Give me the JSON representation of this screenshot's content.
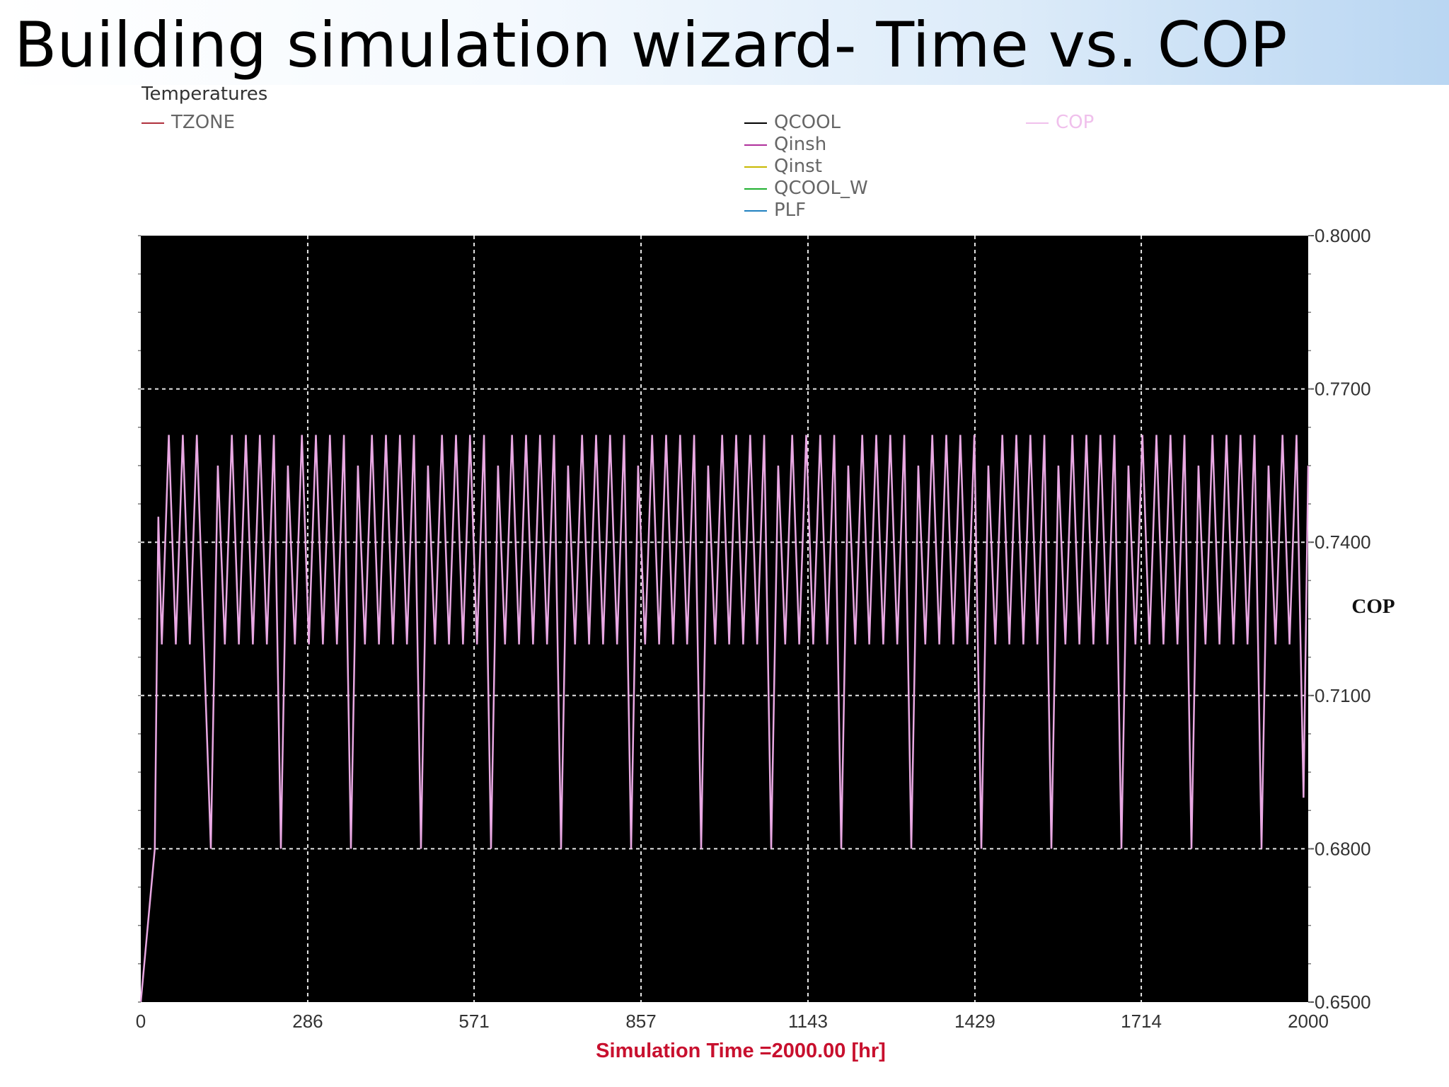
{
  "page": {
    "title": "Building simulation wizard- Time vs. COP"
  },
  "colors": {
    "plot_background": "#000000",
    "grid": "#e6e6e6",
    "cop_line": "#e9a8e3",
    "xlabel": "#c8102e",
    "title_banner": "#b9d6f2"
  },
  "legend": {
    "group_title": "Temperatures",
    "left": [
      {
        "label": "TZONE",
        "color": "#b0303c"
      }
    ],
    "middle": [
      {
        "label": "QCOOL",
        "color": "#000000"
      },
      {
        "label": "Qinsh",
        "color": "#b0309c"
      },
      {
        "label": "Qinst",
        "color": "#c8b800"
      },
      {
        "label": "QCOOL_W",
        "color": "#20b030"
      },
      {
        "label": "PLF",
        "color": "#2080c0"
      }
    ],
    "right": [
      {
        "label": "COP",
        "color": "#f0c0ec"
      }
    ]
  },
  "chart_data": {
    "type": "line",
    "title": "",
    "xlabel": "Simulation Time =2000.00 [hr]",
    "ylabel": "COP",
    "xlim": [
      0,
      2000
    ],
    "ylim": [
      0.65,
      0.8
    ],
    "x_ticks": [
      0,
      286,
      571,
      857,
      1143,
      1429,
      1714,
      2000
    ],
    "y_ticks": [
      "0.6500",
      "0.6800",
      "0.7100",
      "0.7400",
      "0.7700",
      "0.8000"
    ],
    "grid": true,
    "series": [
      {
        "name": "COP",
        "color": "#e9a8e3",
        "pattern": {
          "period_hr": 24,
          "daily_peak": 0.761,
          "daily_trough_regular": 0.72,
          "weekly_trough": 0.68,
          "weekly_period_hr": 120
        },
        "points": [
          [
            0,
            0.65
          ],
          [
            24,
            0.68
          ],
          [
            30,
            0.745
          ],
          [
            36,
            0.72
          ],
          [
            48,
            0.761
          ],
          [
            60,
            0.72
          ],
          [
            72,
            0.761
          ],
          [
            84,
            0.72
          ],
          [
            96,
            0.761
          ],
          [
            108,
            0.72
          ],
          [
            120,
            0.68
          ],
          [
            132,
            0.755
          ],
          [
            144,
            0.72
          ],
          [
            156,
            0.761
          ],
          [
            168,
            0.72
          ],
          [
            180,
            0.761
          ],
          [
            192,
            0.72
          ],
          [
            204,
            0.761
          ],
          [
            216,
            0.72
          ],
          [
            228,
            0.761
          ],
          [
            240,
            0.68
          ],
          [
            252,
            0.755
          ],
          [
            264,
            0.72
          ],
          [
            276,
            0.761
          ],
          [
            288,
            0.72
          ],
          [
            300,
            0.761
          ],
          [
            312,
            0.72
          ],
          [
            324,
            0.761
          ],
          [
            336,
            0.72
          ],
          [
            348,
            0.761
          ],
          [
            360,
            0.68
          ],
          [
            372,
            0.755
          ],
          [
            384,
            0.72
          ],
          [
            396,
            0.761
          ],
          [
            408,
            0.72
          ],
          [
            420,
            0.761
          ],
          [
            432,
            0.72
          ],
          [
            444,
            0.761
          ],
          [
            456,
            0.72
          ],
          [
            468,
            0.761
          ],
          [
            480,
            0.68
          ],
          [
            492,
            0.755
          ],
          [
            504,
            0.72
          ],
          [
            516,
            0.761
          ],
          [
            528,
            0.72
          ],
          [
            540,
            0.761
          ],
          [
            552,
            0.72
          ],
          [
            564,
            0.761
          ],
          [
            576,
            0.72
          ],
          [
            588,
            0.761
          ],
          [
            600,
            0.68
          ],
          [
            612,
            0.755
          ],
          [
            624,
            0.72
          ],
          [
            636,
            0.761
          ],
          [
            648,
            0.72
          ],
          [
            660,
            0.761
          ],
          [
            672,
            0.72
          ],
          [
            684,
            0.761
          ],
          [
            696,
            0.72
          ],
          [
            708,
            0.761
          ],
          [
            720,
            0.68
          ],
          [
            732,
            0.755
          ],
          [
            744,
            0.72
          ],
          [
            756,
            0.761
          ],
          [
            768,
            0.72
          ],
          [
            780,
            0.761
          ],
          [
            792,
            0.72
          ],
          [
            804,
            0.761
          ],
          [
            816,
            0.72
          ],
          [
            828,
            0.761
          ],
          [
            840,
            0.68
          ],
          [
            852,
            0.755
          ],
          [
            864,
            0.72
          ],
          [
            876,
            0.761
          ],
          [
            888,
            0.72
          ],
          [
            900,
            0.761
          ],
          [
            912,
            0.72
          ],
          [
            924,
            0.761
          ],
          [
            936,
            0.72
          ],
          [
            948,
            0.761
          ],
          [
            960,
            0.68
          ],
          [
            972,
            0.755
          ],
          [
            984,
            0.72
          ],
          [
            996,
            0.761
          ],
          [
            1008,
            0.72
          ],
          [
            1020,
            0.761
          ],
          [
            1032,
            0.72
          ],
          [
            1044,
            0.761
          ],
          [
            1056,
            0.72
          ],
          [
            1068,
            0.761
          ],
          [
            1080,
            0.68
          ],
          [
            1092,
            0.755
          ],
          [
            1104,
            0.72
          ],
          [
            1116,
            0.761
          ],
          [
            1128,
            0.72
          ],
          [
            1140,
            0.761
          ],
          [
            1152,
            0.72
          ],
          [
            1164,
            0.761
          ],
          [
            1176,
            0.72
          ],
          [
            1188,
            0.761
          ],
          [
            1200,
            0.68
          ],
          [
            1212,
            0.755
          ],
          [
            1224,
            0.72
          ],
          [
            1236,
            0.761
          ],
          [
            1248,
            0.72
          ],
          [
            1260,
            0.761
          ],
          [
            1272,
            0.72
          ],
          [
            1284,
            0.761
          ],
          [
            1296,
            0.72
          ],
          [
            1308,
            0.761
          ],
          [
            1320,
            0.68
          ],
          [
            1332,
            0.755
          ],
          [
            1344,
            0.72
          ],
          [
            1356,
            0.761
          ],
          [
            1368,
            0.72
          ],
          [
            1380,
            0.761
          ],
          [
            1392,
            0.72
          ],
          [
            1404,
            0.761
          ],
          [
            1416,
            0.72
          ],
          [
            1428,
            0.761
          ],
          [
            1440,
            0.68
          ],
          [
            1452,
            0.755
          ],
          [
            1464,
            0.72
          ],
          [
            1476,
            0.761
          ],
          [
            1488,
            0.72
          ],
          [
            1500,
            0.761
          ],
          [
            1512,
            0.72
          ],
          [
            1524,
            0.761
          ],
          [
            1536,
            0.72
          ],
          [
            1548,
            0.761
          ],
          [
            1560,
            0.68
          ],
          [
            1572,
            0.755
          ],
          [
            1584,
            0.72
          ],
          [
            1596,
            0.761
          ],
          [
            1608,
            0.72
          ],
          [
            1620,
            0.761
          ],
          [
            1632,
            0.72
          ],
          [
            1644,
            0.761
          ],
          [
            1656,
            0.72
          ],
          [
            1668,
            0.761
          ],
          [
            1680,
            0.68
          ],
          [
            1692,
            0.755
          ],
          [
            1704,
            0.72
          ],
          [
            1716,
            0.761
          ],
          [
            1728,
            0.72
          ],
          [
            1740,
            0.761
          ],
          [
            1752,
            0.72
          ],
          [
            1764,
            0.761
          ],
          [
            1776,
            0.72
          ],
          [
            1788,
            0.761
          ],
          [
            1800,
            0.68
          ],
          [
            1812,
            0.755
          ],
          [
            1824,
            0.72
          ],
          [
            1836,
            0.761
          ],
          [
            1848,
            0.72
          ],
          [
            1860,
            0.761
          ],
          [
            1872,
            0.72
          ],
          [
            1884,
            0.761
          ],
          [
            1896,
            0.72
          ],
          [
            1908,
            0.761
          ],
          [
            1920,
            0.68
          ],
          [
            1932,
            0.755
          ],
          [
            1944,
            0.72
          ],
          [
            1956,
            0.761
          ],
          [
            1968,
            0.72
          ],
          [
            1980,
            0.761
          ],
          [
            1992,
            0.69
          ],
          [
            2000,
            0.755
          ]
        ]
      }
    ]
  }
}
